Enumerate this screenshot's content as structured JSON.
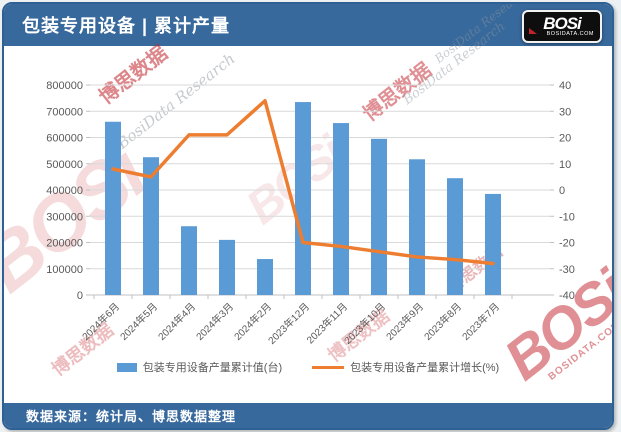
{
  "header": {
    "title": "包装专用设备 | 累计产量",
    "logo": {
      "brand": "BOSi",
      "domain": "BOSIDATA.COM"
    }
  },
  "footer": {
    "source": "数据来源：统计局、博思数据整理"
  },
  "watermarks": {
    "cn": "博思数据",
    "en": "BosiData Research",
    "logo": "BOSi",
    "domain": "BOSIDATA.COM"
  },
  "colors": {
    "header_bg": "#38699c",
    "panel_border": "#2e6094",
    "bar": "#5b9bd5",
    "line": "#ed7d31",
    "axis_text": "#595959",
    "gridline": "#d9d9d9",
    "axis_line": "#c0c0c0",
    "watermark_red": "#c3242b",
    "watermark_gray": "#8d969e"
  },
  "chart_data": {
    "type": "bar",
    "subtype": "bar+line combo, dual axis",
    "categories": [
      "2024年6月",
      "2024年5月",
      "2024年4月",
      "2024年3月",
      "2024年2月",
      "2023年12月",
      "2023年11月",
      "2023年10月",
      "2023年9月",
      "2023年8月",
      "2023年7月"
    ],
    "series": [
      {
        "name": "包装专用设备产量累计值(台)",
        "type": "bar",
        "axis": "left",
        "values": [
          660000,
          525000,
          262000,
          210000,
          137000,
          735000,
          655000,
          595000,
          517000,
          445000,
          385000
        ]
      },
      {
        "name": "包装专用设备产量累计增长(%)",
        "type": "line",
        "axis": "right",
        "values": [
          8,
          5,
          21,
          21,
          34,
          -20,
          -21.5,
          -23.5,
          -25.5,
          -26.5,
          -28
        ]
      }
    ],
    "left_axis": {
      "min": 0,
      "max": 800000,
      "step": 100000,
      "ticks": [
        0,
        100000,
        200000,
        300000,
        400000,
        500000,
        600000,
        700000,
        800000
      ]
    },
    "right_axis": {
      "min": -40,
      "max": 40,
      "step": 10,
      "ticks": [
        -40,
        -30,
        -20,
        -10,
        0,
        10,
        20,
        30,
        40
      ]
    },
    "grid": true,
    "legend_position": "bottom",
    "x_label_rotation": -45
  }
}
